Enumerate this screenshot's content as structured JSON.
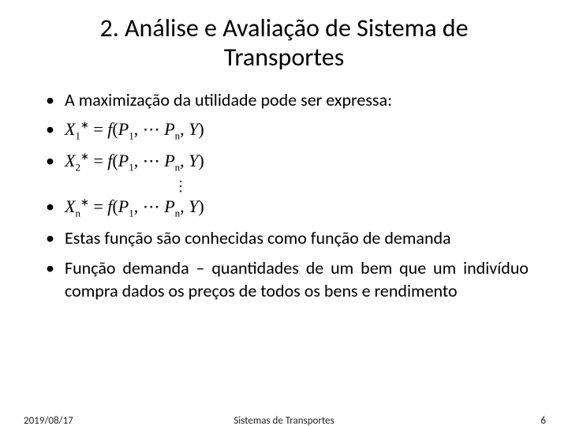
{
  "title": "2. Análise e Avaliação de Sistema de Transportes",
  "bullets": {
    "intro": "A maximização da utilidade pode ser expressa:",
    "eq1_lhs_var": "X",
    "eq1_lhs_sub": "1",
    "eq1_lhs_sup": "∗",
    "eq2_lhs_var": "X",
    "eq2_lhs_sub": "2",
    "eq2_lhs_sup": "∗",
    "eqn_lhs_var": "X",
    "eqn_lhs_sub": "n",
    "eqn_lhs_sup": "∗",
    "eq_eq": " = ",
    "eq_f": "f",
    "eq_open": "(",
    "eq_p": "P",
    "eq_p1sub": "1",
    "eq_cdots": ", ⋯ ",
    "eq_pnsub": "n",
    "eq_comma_y": ", ",
    "eq_y": "Y",
    "eq_close": ")",
    "vdots": "⋮",
    "note1": "Estas função são conhecidas como função de demanda",
    "note2": "Função demanda – quantidades de um bem que um indivíduo compra dados os preços de todos os bens e rendimento"
  },
  "footer": {
    "date": "2019/08/17",
    "mid": "Sistemas de Transportes",
    "num": "6"
  },
  "colors": {
    "text": "#000000",
    "bg": "#ffffff"
  }
}
